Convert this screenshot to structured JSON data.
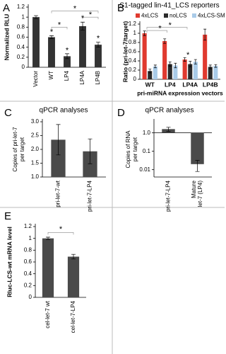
{
  "chart_data": [
    {
      "type": "bar",
      "panel_label": "A",
      "ylabel": [
        "Normalized RLU"
      ],
      "categories": [
        "Vector",
        "WT",
        "LP4",
        "LP4A",
        "LP4B"
      ],
      "values": [
        1.0,
        0.6,
        0.22,
        0.82,
        0.45
      ],
      "errors": [
        0.03,
        0.03,
        0.05,
        0.08,
        0.05
      ],
      "color": "#333333",
      "ylim": [
        0,
        1.2
      ],
      "yticks": [
        0,
        0.2,
        0.4,
        0.6,
        0.8,
        1,
        1.2
      ],
      "annotations": [
        "*",
        "*",
        "*",
        "*",
        "*",
        "*",
        "*"
      ]
    },
    {
      "type": "grouped_bar",
      "panel_label": "B",
      "title": "S1-tagged lin-41_LCS reporters",
      "ylabel": [
        "Ratio (pri-let-7/target)"
      ],
      "xlabel": "pri-miRNA expression vectors",
      "categories": [
        "WT",
        "LP4",
        "LP4A",
        "LP4B"
      ],
      "series": [
        {
          "name": "4xLCS",
          "color": "#e03a2f",
          "values": [
            1.0,
            0.83,
            0.43,
            0.97
          ],
          "errors": [
            0.05,
            0.05,
            0.04,
            0.12
          ]
        },
        {
          "name": "noLCS",
          "color": "#2b2b2b",
          "values": [
            0.18,
            0.33,
            0.33,
            0.27
          ],
          "errors": [
            0.04,
            0.05,
            0.06,
            0.04
          ]
        },
        {
          "name": "4xLCS-SM",
          "color": "#a9cbe8",
          "values": [
            0.28,
            0.3,
            0.38,
            0.29
          ],
          "errors": [
            0.03,
            0.05,
            0.05,
            0.03
          ]
        }
      ],
      "legend": "top",
      "ylim": [
        0,
        1.2
      ],
      "yticks": [
        0,
        0.2,
        0.4,
        0.6,
        0.8,
        1,
        1.2
      ],
      "annotations": [
        "*",
        "*",
        "*"
      ]
    },
    {
      "type": "bar",
      "panel_label": "C",
      "title": "qPCR analyses",
      "ylabel": [
        "Copies of pri-let-7",
        "per target"
      ],
      "categories": [
        "pri-let-7-wt",
        "pri-let-7-LP4"
      ],
      "values": [
        2.35,
        1.93
      ],
      "errors": [
        0.55,
        0.45
      ],
      "color": "#4a4a4a",
      "ylim": [
        1.0,
        3.0
      ],
      "yticks": [
        {
          "value": 1,
          "label": "1.0"
        },
        1.5,
        {
          "value": 2,
          "label": "2.0"
        },
        2.5,
        {
          "value": 3,
          "label": "3.0"
        }
      ]
    },
    {
      "type": "bar",
      "panel_label": "D",
      "title": "qPCR analyses",
      "log_scale": true,
      "ylabel": [
        "Copies of RNA",
        "per target"
      ],
      "categories": [
        "pri-let-7-LP4",
        [
          "Mature",
          "let-7 (LP4)"
        ]
      ],
      "values": [
        1.6,
        0.02
      ],
      "errors": [
        0.4,
        0.012
      ],
      "color": "#4a4a4a",
      "ylim": [
        0.004,
        4
      ],
      "yticks": [
        0.01,
        0.1,
        {
          "value": 1,
          "label": "1.0"
        }
      ]
    },
    {
      "type": "bar",
      "panel_label": "E",
      "ylabel": [
        "Rluc-LCS-wt mRNA level"
      ],
      "categories": [
        "cel-let-7 wt",
        "cel-let-7-LP4"
      ],
      "values": [
        1.0,
        0.69
      ],
      "errors": [
        0.02,
        0.04
      ],
      "color": "#4a4a4a",
      "ylim": [
        0,
        1.2
      ],
      "yticks": [
        0,
        0.2,
        0.4,
        0.6,
        0.8,
        1,
        1.2
      ],
      "annotations": [
        "*"
      ]
    }
  ]
}
